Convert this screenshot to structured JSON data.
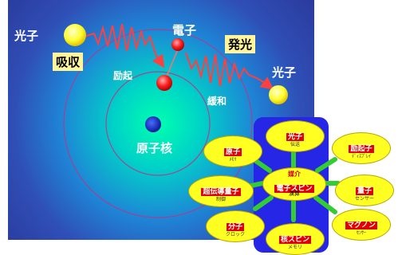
{
  "left_diagram": {
    "photon_in": "光子",
    "photon_out": "光子",
    "electron": "電子",
    "absorption": "吸収",
    "emission": "発光",
    "excitation": "励起",
    "relaxation": "緩和",
    "nucleus": "原子核"
  },
  "hub": {
    "center_top": "媒介",
    "center_main": "電子スピン",
    "center_bottom": "演算",
    "items": [
      {
        "title": "光子",
        "sub": "伝送"
      },
      {
        "title": "励起子",
        "sub": "ﾃﾞｨｽﾌﾟﾚｲ"
      },
      {
        "title": "原子",
        "sub": "ﾒﾓﾘ"
      },
      {
        "title": "超伝導量子",
        "sub": "制御"
      },
      {
        "title": "量子",
        "sub": "センサー"
      },
      {
        "title": "分子",
        "sub": "クロック"
      },
      {
        "title": "核スピン",
        "sub": "メモリ"
      },
      {
        "title": "マグノン",
        "sub": "ｾﾝｻｰ"
      }
    ]
  },
  "colors": {
    "panel_center": "#00ffb0",
    "panel_edge": "#2b3a9c",
    "photon": "#ffff33",
    "electron": "#ff2020",
    "wave": "#ff4040",
    "hub_bg": "#2626e6",
    "oval": "#ffff22",
    "arrow": "#33cc33",
    "tag": "#e00000"
  }
}
